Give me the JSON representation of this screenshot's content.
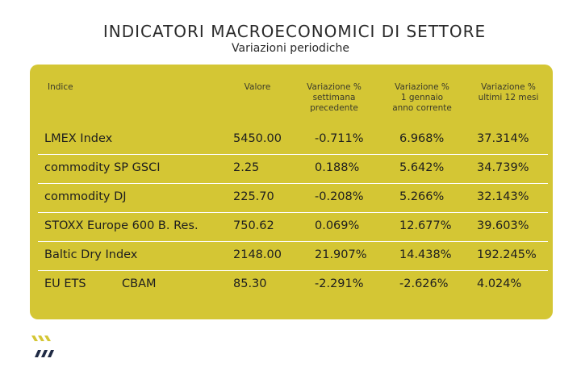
{
  "header": {
    "title": "INDICATORI MACROECONOMICI DI SETTORE",
    "subtitle": "Variazioni periodiche"
  },
  "table": {
    "columns": [
      "Indice",
      "Valore",
      "Variazione % settimana precedente",
      "Variazione % 1 gennaio anno corrente",
      "Variazione % ultimi 12 mesi"
    ],
    "column_lines": {
      "valore": [
        "Valore"
      ],
      "settimana": [
        "Variazione %",
        "settimana",
        "precedente"
      ],
      "gennaio": [
        "Variazione %",
        "1 gennaio",
        "anno corrente"
      ],
      "mesi": [
        "Variazione %",
        "ultimi 12 mesi"
      ]
    },
    "rows": [
      {
        "indice": "LMEX Index",
        "indice_extra": "",
        "valore": "5450.00",
        "settimana": "-0.711%",
        "gennaio": "6.968%",
        "mesi": "37.314%"
      },
      {
        "indice": "commodity SP GSCI",
        "indice_extra": "",
        "valore": "2.25",
        "settimana": "0.188%",
        "gennaio": "5.642%",
        "mesi": "34.739%"
      },
      {
        "indice": "commodity DJ",
        "indice_extra": "",
        "valore": "225.70",
        "settimana": "-0.208%",
        "gennaio": "5.266%",
        "mesi": "32.143%"
      },
      {
        "indice": "STOXX Europe 600 B. Res.",
        "indice_extra": "",
        "valore": "750.62",
        "settimana": "0.069%",
        "gennaio": "12.677%",
        "mesi": "39.603%"
      },
      {
        "indice": "Baltic Dry Index",
        "indice_extra": "",
        "valore": "2148.00",
        "settimana": "21.907%",
        "gennaio": "14.438%",
        "mesi": "192.245%"
      },
      {
        "indice": "EU ETS",
        "indice_extra": "CBAM",
        "valore": "85.30",
        "settimana": "-2.291%",
        "gennaio": "-2.626%",
        "mesi": "4.024%"
      }
    ]
  },
  "colors": {
    "card_background": "#d4c634",
    "row_divider": "#ffffff",
    "logo_yellow": "#d4c634",
    "logo_navy": "#1f2a44"
  },
  "logo": {
    "icon": "chevron-stripes-logo"
  }
}
